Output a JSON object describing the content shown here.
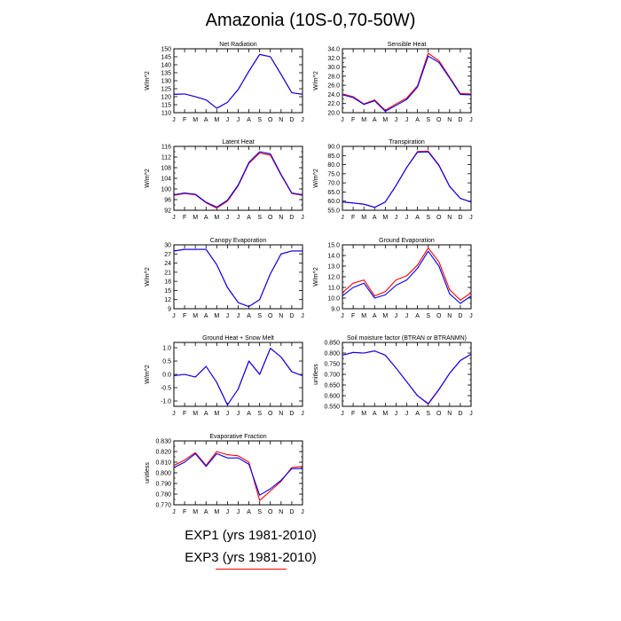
{
  "title": "Amazonia (10S-0,70-50W)",
  "legend": [
    {
      "label": "EXP1 (yrs 1981-2010)",
      "color": "#0000ff"
    },
    {
      "label": "EXP3 (yrs 1981-2010)",
      "color": "#ff0000"
    }
  ],
  "months": [
    "J",
    "F",
    "M",
    "A",
    "M",
    "J",
    "J",
    "A",
    "S",
    "O",
    "N",
    "D",
    "J"
  ],
  "chart_data": [
    {
      "type": "line",
      "title": "Net Radiation",
      "ylabel": "W/m^2",
      "ylim": [
        110,
        150
      ],
      "yticks": [
        "110",
        "115",
        "120",
        "125",
        "130",
        "135",
        "140",
        "145",
        "150"
      ],
      "series": [
        {
          "name": "EXP1 (yrs 1981-2010)",
          "values": [
            121.5,
            121.7,
            120.0,
            118.0,
            112.8,
            116.5,
            124.5,
            136.0,
            146.5,
            145.0,
            134.0,
            122.5,
            121.5
          ]
        },
        {
          "name": "EXP3 (yrs 1981-2010)",
          "values": [
            121.5,
            121.7,
            120.0,
            118.0,
            112.8,
            116.5,
            124.5,
            136.0,
            146.5,
            145.0,
            134.0,
            122.5,
            121.5
          ]
        }
      ]
    },
    {
      "type": "line",
      "title": "Sensible Heat",
      "ylabel": "W/m^2",
      "ylim": [
        20,
        34
      ],
      "yticks": [
        "20.0",
        "22.0",
        "24.0",
        "26.0",
        "28.0",
        "30.0",
        "32.0",
        "34.0"
      ],
      "minor_step": 1,
      "series": [
        {
          "name": "EXP1 (yrs 1981-2010)",
          "values": [
            23.9,
            23.3,
            21.8,
            22.6,
            20.3,
            21.6,
            22.9,
            25.6,
            32.4,
            31.0,
            27.6,
            24.0,
            23.9
          ]
        },
        {
          "name": "EXP3 (yrs 1981-2010)",
          "values": [
            24.1,
            23.5,
            21.9,
            22.8,
            20.5,
            21.9,
            23.2,
            25.9,
            33.0,
            31.4,
            27.8,
            24.2,
            24.1
          ]
        }
      ]
    },
    {
      "type": "line",
      "title": "Latent Heat",
      "ylabel": "W/m^2",
      "ylim": [
        92,
        116
      ],
      "yticks": [
        "92",
        "96",
        "100",
        "104",
        "108",
        "112",
        "116"
      ],
      "minor_step": 2,
      "series": [
        {
          "name": "EXP1 (yrs 1981-2010)",
          "values": [
            97.8,
            98.5,
            98.0,
            95.0,
            93.2,
            95.8,
            101.5,
            110.0,
            114.0,
            113.2,
            105.5,
            98.5,
            97.8
          ]
        },
        {
          "name": "EXP3 (yrs 1981-2010)",
          "values": [
            97.6,
            98.3,
            97.8,
            94.8,
            92.8,
            95.4,
            101.2,
            109.6,
            113.5,
            112.7,
            105.2,
            98.3,
            97.6
          ]
        }
      ]
    },
    {
      "type": "line",
      "title": "Transpiration",
      "ylabel": "W/m^2",
      "ylim": [
        55,
        90
      ],
      "yticks": [
        "55.0",
        "60.0",
        "65.0",
        "70.0",
        "75.0",
        "80.0",
        "85.0",
        "90.0"
      ],
      "series": [
        {
          "name": "EXP1 (yrs 1981-2010)",
          "values": [
            59.5,
            59.0,
            58.3,
            56.6,
            59.5,
            68.5,
            78.5,
            86.8,
            87.0,
            79.5,
            68.0,
            61.5,
            59.5
          ]
        },
        {
          "name": "EXP3 (yrs 1981-2010)",
          "values": [
            59.5,
            59.0,
            58.3,
            56.6,
            59.5,
            68.5,
            78.5,
            87.2,
            87.4,
            79.8,
            68.2,
            61.5,
            59.5
          ]
        }
      ]
    },
    {
      "type": "line",
      "title": "Canopy Evaporation",
      "ylabel": "W/m^2",
      "ylim": [
        9,
        30
      ],
      "yticks": [
        "9",
        "12",
        "15",
        "18",
        "21",
        "24",
        "27",
        "30"
      ],
      "series": [
        {
          "name": "EXP1 (yrs 1981-2010)",
          "values": [
            28.0,
            28.5,
            28.5,
            28.5,
            23.5,
            16.0,
            11.0,
            9.7,
            12.0,
            20.5,
            27.0,
            28.0,
            28.0
          ]
        },
        {
          "name": "EXP3 (yrs 1981-2010)",
          "values": [
            28.0,
            28.5,
            28.5,
            28.5,
            23.5,
            16.0,
            11.0,
            9.7,
            12.0,
            20.5,
            27.0,
            28.0,
            28.0
          ]
        }
      ]
    },
    {
      "type": "line",
      "title": "Ground Evaporation",
      "ylabel": "W/m^2",
      "ylim": [
        9,
        15
      ],
      "yticks": [
        "9.0",
        "10.0",
        "11.0",
        "12.0",
        "13.0",
        "14.0",
        "15.0"
      ],
      "minor_step": 0.5,
      "series": [
        {
          "name": "EXP1 (yrs 1981-2010)",
          "values": [
            10.2,
            11.0,
            11.4,
            10.0,
            10.3,
            11.2,
            11.7,
            12.8,
            14.4,
            13.0,
            10.4,
            9.5,
            10.2
          ]
        },
        {
          "name": "EXP3 (yrs 1981-2010)",
          "values": [
            10.5,
            11.4,
            11.7,
            10.2,
            10.6,
            11.7,
            12.1,
            13.1,
            14.7,
            13.4,
            10.8,
            9.8,
            10.5
          ]
        }
      ]
    },
    {
      "type": "line",
      "title": "Ground Heat + Snow Melt",
      "ylabel": "W/m^2",
      "ylim": [
        -1.2,
        1.2
      ],
      "yticks": [
        "-1.0",
        "-0.5",
        "0.0",
        "0.5",
        "1.0"
      ],
      "ytick_values": [
        -1.0,
        -0.5,
        0.0,
        0.5,
        1.0
      ],
      "series": [
        {
          "name": "EXP1 (yrs 1981-2010)",
          "values": [
            -0.05,
            0.0,
            -0.1,
            0.3,
            -0.3,
            -1.15,
            -0.55,
            0.5,
            0.0,
            0.98,
            0.65,
            0.1,
            -0.05
          ]
        },
        {
          "name": "EXP3 (yrs 1981-2010)",
          "values": [
            -0.05,
            0.0,
            -0.1,
            0.3,
            -0.3,
            -1.15,
            -0.55,
            0.5,
            0.0,
            0.98,
            0.65,
            0.1,
            -0.05
          ]
        }
      ]
    },
    {
      "type": "line",
      "title": "Soil moisture factor (BTRAN or BTRANMN)",
      "ylabel": "unitless",
      "ylim": [
        0.55,
        0.85
      ],
      "yticks": [
        "0.550",
        "0.600",
        "0.650",
        "0.700",
        "0.750",
        "0.800",
        "0.850"
      ],
      "minor_step": 0.025,
      "series": [
        {
          "name": "EXP1 (yrs 1981-2010)",
          "values": [
            0.79,
            0.803,
            0.8,
            0.81,
            0.79,
            0.73,
            0.665,
            0.6,
            0.563,
            0.63,
            0.705,
            0.765,
            0.795
          ]
        },
        {
          "name": "EXP3 (yrs 1981-2010)",
          "values": [
            0.79,
            0.803,
            0.8,
            0.81,
            0.79,
            0.73,
            0.665,
            0.6,
            0.56,
            0.628,
            0.705,
            0.765,
            0.795
          ]
        }
      ]
    },
    {
      "type": "line",
      "title": "Evaporative Fraction",
      "ylabel": "unitless",
      "ylim": [
        0.77,
        0.83
      ],
      "yticks": [
        "0.770",
        "0.780",
        "0.790",
        "0.800",
        "0.810",
        "0.820",
        "0.830"
      ],
      "minor_step": 0.005,
      "series": [
        {
          "name": "EXP1 (yrs 1981-2010)",
          "values": [
            0.805,
            0.81,
            0.818,
            0.806,
            0.818,
            0.814,
            0.814,
            0.808,
            0.779,
            0.785,
            0.793,
            0.804,
            0.804
          ]
        },
        {
          "name": "EXP3 (yrs 1981-2010)",
          "values": [
            0.807,
            0.812,
            0.819,
            0.807,
            0.82,
            0.817,
            0.816,
            0.81,
            0.774,
            0.783,
            0.792,
            0.805,
            0.806
          ]
        }
      ]
    }
  ]
}
